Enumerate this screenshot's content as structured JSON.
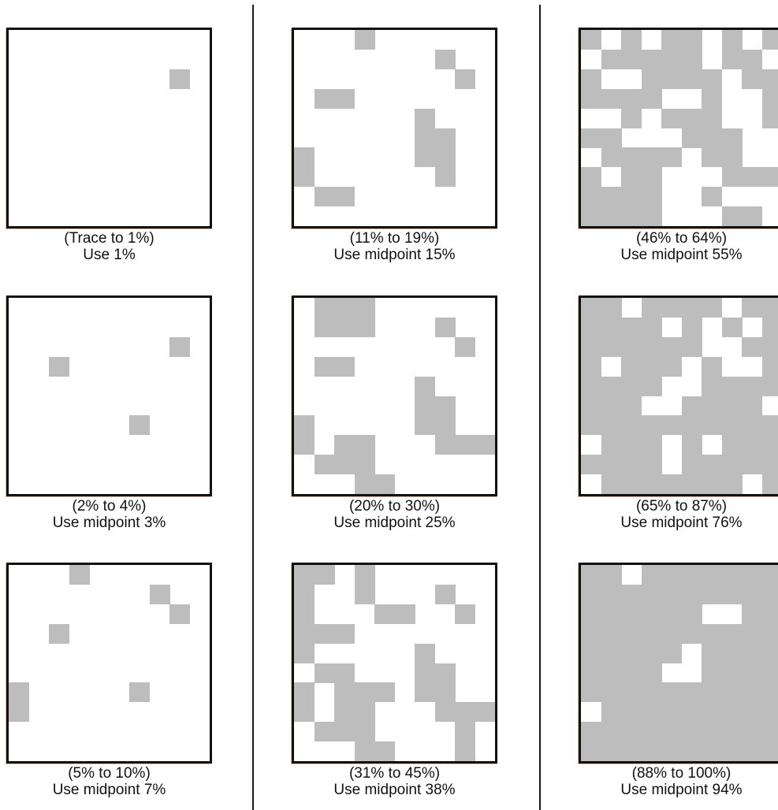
{
  "colors": {
    "fill": "#bdbdbd",
    "border": "#111111",
    "background": "#ffffff"
  },
  "panels": [
    {
      "range": "(Trace to 1%)",
      "use": "Use 1%",
      "cells": [
        [
          8,
          2
        ]
      ]
    },
    {
      "range": "(2% to 4%)",
      "use": "Use midpoint 3%",
      "cells": [
        [
          8,
          2
        ],
        [
          2,
          3
        ],
        [
          6,
          6
        ]
      ]
    },
    {
      "range": "(5% to 10%)",
      "use": "Use midpoint 7%",
      "cells": [
        [
          3,
          0
        ],
        [
          7,
          1
        ],
        [
          8,
          2
        ],
        [
          2,
          3
        ],
        [
          6,
          6
        ],
        [
          0,
          6
        ],
        [
          0,
          7
        ]
      ]
    },
    {
      "range": "(11% to 19%)",
      "use": "Use midpoint 15%",
      "cells": [
        [
          3,
          0
        ],
        [
          7,
          1
        ],
        [
          8,
          2
        ],
        [
          1,
          3
        ],
        [
          2,
          3
        ],
        [
          6,
          4
        ],
        [
          6,
          5
        ],
        [
          7,
          5
        ],
        [
          0,
          6
        ],
        [
          6,
          6
        ],
        [
          7,
          6
        ],
        [
          0,
          7
        ],
        [
          7,
          7
        ],
        [
          1,
          8
        ],
        [
          2,
          8
        ]
      ]
    },
    {
      "range": "(20% to 30%)",
      "use": "Use midpoint 25%",
      "cells": [
        [
          1,
          0
        ],
        [
          2,
          0
        ],
        [
          3,
          0
        ],
        [
          1,
          1
        ],
        [
          2,
          1
        ],
        [
          3,
          1
        ],
        [
          7,
          1
        ],
        [
          8,
          2
        ],
        [
          1,
          3
        ],
        [
          2,
          3
        ],
        [
          6,
          4
        ],
        [
          6,
          5
        ],
        [
          7,
          5
        ],
        [
          0,
          6
        ],
        [
          6,
          6
        ],
        [
          7,
          6
        ],
        [
          8,
          7
        ],
        [
          9,
          7
        ],
        [
          0,
          7
        ],
        [
          7,
          7
        ],
        [
          2,
          7
        ],
        [
          3,
          7
        ],
        [
          1,
          8
        ],
        [
          2,
          8
        ],
        [
          3,
          8
        ],
        [
          3,
          9
        ],
        [
          4,
          9
        ]
      ]
    },
    {
      "range": "(31% to 45%)",
      "use": "Use midpoint 38%",
      "cells": [
        [
          0,
          0
        ],
        [
          1,
          0
        ],
        [
          3,
          0
        ],
        [
          0,
          1
        ],
        [
          3,
          1
        ],
        [
          7,
          1
        ],
        [
          0,
          2
        ],
        [
          4,
          2
        ],
        [
          5,
          2
        ],
        [
          8,
          2
        ],
        [
          0,
          3
        ],
        [
          1,
          3
        ],
        [
          2,
          3
        ],
        [
          0,
          4
        ],
        [
          6,
          4
        ],
        [
          1,
          5
        ],
        [
          2,
          5
        ],
        [
          6,
          5
        ],
        [
          7,
          5
        ],
        [
          0,
          6
        ],
        [
          2,
          6
        ],
        [
          3,
          6
        ],
        [
          4,
          6
        ],
        [
          6,
          6
        ],
        [
          7,
          6
        ],
        [
          0,
          7
        ],
        [
          2,
          7
        ],
        [
          3,
          7
        ],
        [
          7,
          7
        ],
        [
          8,
          7
        ],
        [
          9,
          7
        ],
        [
          1,
          8
        ],
        [
          2,
          8
        ],
        [
          3,
          8
        ],
        [
          8,
          8
        ],
        [
          3,
          9
        ],
        [
          4,
          9
        ],
        [
          8,
          9
        ]
      ]
    },
    {
      "range": "(46% to 64%)",
      "use": "Use midpoint 55%",
      "cells": [
        [
          0,
          0
        ],
        [
          2,
          0
        ],
        [
          4,
          0
        ],
        [
          5,
          0
        ],
        [
          7,
          0
        ],
        [
          9,
          0
        ],
        [
          1,
          1
        ],
        [
          2,
          1
        ],
        [
          3,
          1
        ],
        [
          4,
          1
        ],
        [
          5,
          1
        ],
        [
          7,
          1
        ],
        [
          8,
          1
        ],
        [
          0,
          2
        ],
        [
          3,
          2
        ],
        [
          4,
          2
        ],
        [
          5,
          2
        ],
        [
          6,
          2
        ],
        [
          8,
          2
        ],
        [
          9,
          2
        ],
        [
          0,
          3
        ],
        [
          1,
          3
        ],
        [
          2,
          3
        ],
        [
          3,
          3
        ],
        [
          6,
          3
        ],
        [
          9,
          3
        ],
        [
          2,
          4
        ],
        [
          4,
          4
        ],
        [
          5,
          4
        ],
        [
          6,
          4
        ],
        [
          9,
          4
        ],
        [
          0,
          5
        ],
        [
          1,
          5
        ],
        [
          5,
          5
        ],
        [
          6,
          5
        ],
        [
          7,
          5
        ],
        [
          1,
          6
        ],
        [
          2,
          6
        ],
        [
          3,
          6
        ],
        [
          4,
          6
        ],
        [
          6,
          6
        ],
        [
          7,
          6
        ],
        [
          0,
          7
        ],
        [
          2,
          7
        ],
        [
          3,
          7
        ],
        [
          7,
          7
        ],
        [
          8,
          7
        ],
        [
          9,
          7
        ],
        [
          0,
          8
        ],
        [
          1,
          8
        ],
        [
          2,
          8
        ],
        [
          3,
          8
        ],
        [
          6,
          8
        ],
        [
          0,
          9
        ],
        [
          1,
          9
        ],
        [
          2,
          9
        ],
        [
          3,
          9
        ],
        [
          7,
          9
        ],
        [
          8,
          9
        ]
      ]
    },
    {
      "range": "(65% to 87%)",
      "use": "Use midpoint 76%",
      "cells": [
        [
          0,
          0
        ],
        [
          1,
          0
        ],
        [
          3,
          0
        ],
        [
          4,
          0
        ],
        [
          5,
          0
        ],
        [
          6,
          0
        ],
        [
          8,
          0
        ],
        [
          9,
          0
        ],
        [
          0,
          1
        ],
        [
          1,
          1
        ],
        [
          2,
          1
        ],
        [
          3,
          1
        ],
        [
          5,
          1
        ],
        [
          7,
          1
        ],
        [
          9,
          1
        ],
        [
          0,
          2
        ],
        [
          1,
          2
        ],
        [
          2,
          2
        ],
        [
          3,
          2
        ],
        [
          4,
          2
        ],
        [
          5,
          2
        ],
        [
          8,
          2
        ],
        [
          9,
          2
        ],
        [
          0,
          3
        ],
        [
          2,
          3
        ],
        [
          3,
          3
        ],
        [
          4,
          3
        ],
        [
          6,
          3
        ],
        [
          9,
          3
        ],
        [
          0,
          4
        ],
        [
          1,
          4
        ],
        [
          2,
          4
        ],
        [
          3,
          4
        ],
        [
          6,
          4
        ],
        [
          7,
          4
        ],
        [
          8,
          4
        ],
        [
          9,
          4
        ],
        [
          0,
          5
        ],
        [
          1,
          5
        ],
        [
          2,
          5
        ],
        [
          5,
          5
        ],
        [
          6,
          5
        ],
        [
          7,
          5
        ],
        [
          8,
          5
        ],
        [
          0,
          6
        ],
        [
          1,
          6
        ],
        [
          2,
          6
        ],
        [
          3,
          6
        ],
        [
          4,
          6
        ],
        [
          5,
          6
        ],
        [
          6,
          6
        ],
        [
          7,
          6
        ],
        [
          8,
          6
        ],
        [
          9,
          6
        ],
        [
          1,
          7
        ],
        [
          2,
          7
        ],
        [
          3,
          7
        ],
        [
          5,
          7
        ],
        [
          7,
          7
        ],
        [
          8,
          7
        ],
        [
          9,
          7
        ],
        [
          0,
          8
        ],
        [
          1,
          8
        ],
        [
          2,
          8
        ],
        [
          3,
          8
        ],
        [
          5,
          8
        ],
        [
          6,
          8
        ],
        [
          7,
          8
        ],
        [
          8,
          8
        ],
        [
          9,
          8
        ],
        [
          1,
          9
        ],
        [
          2,
          9
        ],
        [
          3,
          9
        ],
        [
          4,
          9
        ],
        [
          5,
          9
        ],
        [
          6,
          9
        ],
        [
          7,
          9
        ],
        [
          9,
          9
        ]
      ]
    },
    {
      "range": "(88% to 100%)",
      "use": "Use midpoint 94%",
      "cells": [
        [
          0,
          0
        ],
        [
          1,
          0
        ],
        [
          3,
          0
        ],
        [
          4,
          0
        ],
        [
          5,
          0
        ],
        [
          6,
          0
        ],
        [
          7,
          0
        ],
        [
          8,
          0
        ],
        [
          9,
          0
        ],
        [
          0,
          1
        ],
        [
          1,
          1
        ],
        [
          2,
          1
        ],
        [
          3,
          1
        ],
        [
          4,
          1
        ],
        [
          5,
          1
        ],
        [
          6,
          1
        ],
        [
          7,
          1
        ],
        [
          8,
          1
        ],
        [
          9,
          1
        ],
        [
          0,
          2
        ],
        [
          1,
          2
        ],
        [
          2,
          2
        ],
        [
          3,
          2
        ],
        [
          4,
          2
        ],
        [
          5,
          2
        ],
        [
          8,
          2
        ],
        [
          9,
          2
        ],
        [
          0,
          3
        ],
        [
          1,
          3
        ],
        [
          2,
          3
        ],
        [
          3,
          3
        ],
        [
          4,
          3
        ],
        [
          5,
          3
        ],
        [
          6,
          3
        ],
        [
          7,
          3
        ],
        [
          8,
          3
        ],
        [
          9,
          3
        ],
        [
          0,
          4
        ],
        [
          1,
          4
        ],
        [
          2,
          4
        ],
        [
          3,
          4
        ],
        [
          4,
          4
        ],
        [
          6,
          4
        ],
        [
          7,
          4
        ],
        [
          8,
          4
        ],
        [
          9,
          4
        ],
        [
          0,
          5
        ],
        [
          1,
          5
        ],
        [
          2,
          5
        ],
        [
          3,
          5
        ],
        [
          6,
          5
        ],
        [
          7,
          5
        ],
        [
          8,
          5
        ],
        [
          9,
          5
        ],
        [
          0,
          6
        ],
        [
          1,
          6
        ],
        [
          2,
          6
        ],
        [
          3,
          6
        ],
        [
          4,
          6
        ],
        [
          5,
          6
        ],
        [
          6,
          6
        ],
        [
          7,
          6
        ],
        [
          8,
          6
        ],
        [
          9,
          6
        ],
        [
          1,
          7
        ],
        [
          2,
          7
        ],
        [
          3,
          7
        ],
        [
          4,
          7
        ],
        [
          5,
          7
        ],
        [
          6,
          7
        ],
        [
          7,
          7
        ],
        [
          8,
          7
        ],
        [
          9,
          7
        ],
        [
          0,
          8
        ],
        [
          1,
          8
        ],
        [
          2,
          8
        ],
        [
          3,
          8
        ],
        [
          4,
          8
        ],
        [
          5,
          8
        ],
        [
          6,
          8
        ],
        [
          7,
          8
        ],
        [
          8,
          8
        ],
        [
          9,
          8
        ],
        [
          0,
          9
        ],
        [
          1,
          9
        ],
        [
          2,
          9
        ],
        [
          3,
          9
        ],
        [
          4,
          9
        ],
        [
          5,
          9
        ],
        [
          6,
          9
        ],
        [
          7,
          9
        ],
        [
          8,
          9
        ],
        [
          9,
          9
        ]
      ]
    }
  ]
}
